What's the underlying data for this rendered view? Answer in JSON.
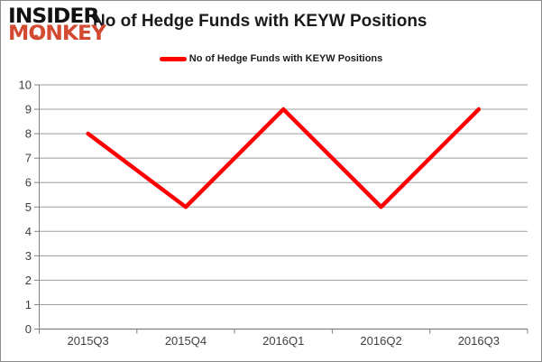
{
  "logo": {
    "line1": "INSIDER",
    "line2": "MONKEY"
  },
  "title": "No of Hedge Funds with KEYW Positions",
  "legend": {
    "label": "No of Hedge Funds with KEYW Positions"
  },
  "colors": {
    "series_red": "#ff0000",
    "logo_black": "#111111",
    "logo_red": "#d34a32",
    "gridline": "#9d9d9d",
    "axis": "#808080",
    "axis_label": "#3f3f3f",
    "title_text": "#1a1a1a"
  },
  "chart_data": {
    "type": "line",
    "title": "No of Hedge Funds with KEYW Positions",
    "categories": [
      "2015Q3",
      "2015Q4",
      "2016Q1",
      "2016Q2",
      "2016Q3"
    ],
    "series": [
      {
        "name": "No of Hedge Funds with KEYW Positions",
        "values": [
          8,
          5,
          9,
          5,
          9
        ],
        "color": "#ff0000"
      }
    ],
    "xlabel": "",
    "ylabel": "",
    "ylim": [
      0,
      10
    ],
    "ytick_step": 1,
    "grid": "horizontal-major",
    "legend_position": "top-center"
  }
}
